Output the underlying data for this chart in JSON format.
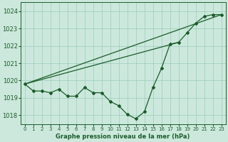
{
  "background_color": "#cce8dc",
  "grid_color": "#99ccbb",
  "line_color": "#1a5c2a",
  "xlabel": "Graphe pression niveau de la mer (hPa)",
  "ylim": [
    1017.5,
    1024.5
  ],
  "xlim": [
    -0.5,
    23.5
  ],
  "yticks": [
    1018,
    1019,
    1020,
    1021,
    1022,
    1023,
    1024
  ],
  "xticks": [
    0,
    1,
    2,
    3,
    4,
    5,
    6,
    7,
    8,
    9,
    10,
    11,
    12,
    13,
    14,
    15,
    16,
    17,
    18,
    19,
    20,
    21,
    22,
    23
  ],
  "main_series": [
    1019.8,
    1019.4,
    1019.4,
    1019.3,
    1019.5,
    1019.1,
    1019.1,
    1019.6,
    1019.3,
    1019.3,
    1018.8,
    1018.55,
    1018.05,
    1017.8,
    1018.2,
    1019.6,
    1020.7,
    1022.1,
    1022.2,
    1022.75,
    1023.3,
    1023.7,
    1023.8,
    1023.8
  ],
  "line2_x": [
    0,
    23
  ],
  "line2_y": [
    1019.8,
    1023.8
  ],
  "line3_x": [
    0,
    18
  ],
  "line3_y": [
    1019.8,
    1022.2
  ],
  "figsize": [
    3.2,
    2.0
  ],
  "dpi": 100
}
